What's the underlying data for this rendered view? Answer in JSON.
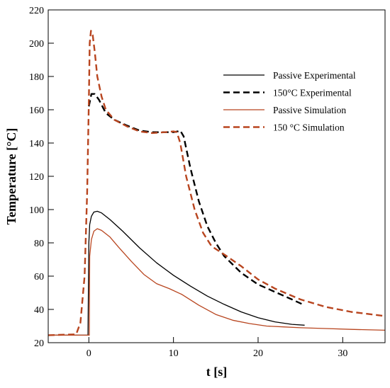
{
  "chart_data": {
    "type": "line",
    "title": "",
    "xlabel": "t [s]",
    "ylabel": "Temperature [°C]",
    "xlim": [
      -4.8,
      35
    ],
    "ylim": [
      20,
      220
    ],
    "xticks": [
      0,
      10,
      20,
      30
    ],
    "yticks": [
      20,
      40,
      60,
      80,
      100,
      120,
      140,
      160,
      180,
      200,
      220
    ],
    "grid": false,
    "legend_position": "top-right",
    "series": [
      {
        "name": "Passive Experimental",
        "color": "#000000",
        "style": "solid",
        "x": [
          -4.8,
          -0.1,
          0.0,
          0.1,
          0.3,
          0.6,
          1.0,
          1.5,
          2.5,
          4.0,
          6.0,
          8.0,
          10.0,
          12.0,
          14.0,
          16.0,
          18.0,
          20.0,
          22.0,
          24.0,
          25.5
        ],
        "y": [
          24.5,
          24.5,
          80.0,
          91.0,
          96.0,
          98.5,
          99.0,
          98.0,
          94.0,
          87.0,
          77.0,
          68.0,
          60.5,
          54.0,
          48.0,
          43.0,
          38.5,
          35.0,
          32.5,
          31.0,
          30.5
        ]
      },
      {
        "name": "150°C Experimental",
        "color": "#000000",
        "style": "dashed",
        "x": [
          0.0,
          0.3,
          0.7,
          1.2,
          2.0,
          3.0,
          4.5,
          6.0,
          7.5,
          9.0,
          10.0,
          10.5,
          10.8,
          11.2,
          12.0,
          13.0,
          14.0,
          15.0,
          16.0,
          18.0,
          20.0,
          22.0,
          24.0,
          25.5
        ],
        "y": [
          162.0,
          169.5,
          169.5,
          166.0,
          158.0,
          154.0,
          150.5,
          147.5,
          146.5,
          146.5,
          146.5,
          147.0,
          147.5,
          144.0,
          125.0,
          105.0,
          90.0,
          80.0,
          72.0,
          62.0,
          55.0,
          50.5,
          46.0,
          42.5
        ]
      },
      {
        "name": "Passive Simulation",
        "color": "#b8451f",
        "style": "solid",
        "x": [
          -4.8,
          0.05,
          0.1,
          0.3,
          0.6,
          1.0,
          1.5,
          2.5,
          3.5,
          5.0,
          6.5,
          8.0,
          9.5,
          11.0,
          13.0,
          15.0,
          17.0,
          19.0,
          21.0,
          23.0,
          25.0,
          28.0,
          31.0,
          35.0
        ],
        "y": [
          24.5,
          24.5,
          72.0,
          82.0,
          87.0,
          88.5,
          87.5,
          83.5,
          77.5,
          69.0,
          61.0,
          55.5,
          52.5,
          49.0,
          42.5,
          37.0,
          33.5,
          31.5,
          30.0,
          29.5,
          29.0,
          28.5,
          28.0,
          27.5
        ]
      },
      {
        "name": "150 °C Simulation",
        "color": "#b8451f",
        "style": "dashed",
        "x": [
          -4.8,
          -1.5,
          -1.0,
          -0.5,
          -0.2,
          0.0,
          0.1,
          0.25,
          0.45,
          0.7,
          1.0,
          1.5,
          2.0,
          3.0,
          4.5,
          6.0,
          7.5,
          9.0,
          10.0,
          10.4,
          10.8,
          11.5,
          12.5,
          13.5,
          14.5,
          16.0,
          18.0,
          20.0,
          22.0,
          25.0,
          28.0,
          31.0,
          35.0
        ],
        "y": [
          24.5,
          25.0,
          32.0,
          60.0,
          110.0,
          165.0,
          200.0,
          207.5,
          205.0,
          195.0,
          180.0,
          168.0,
          160.0,
          154.0,
          150.0,
          147.0,
          146.0,
          146.5,
          147.0,
          146.5,
          140.0,
          120.0,
          100.0,
          86.0,
          78.0,
          73.0,
          66.0,
          58.0,
          52.5,
          46.0,
          41.5,
          38.5,
          36.0
        ]
      }
    ]
  }
}
